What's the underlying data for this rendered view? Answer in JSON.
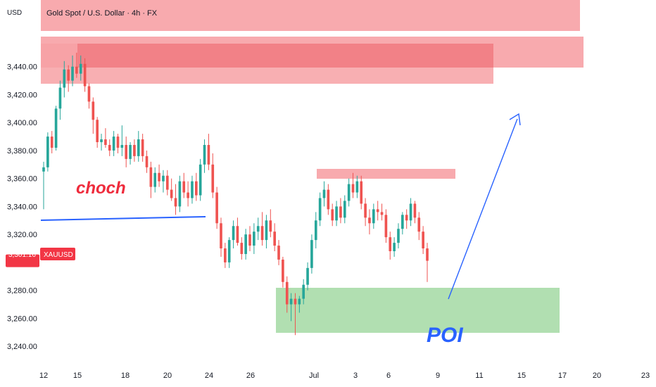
{
  "header": {
    "currency": "USD",
    "title": "Gold Spot / U.S. Dollar · 4h · FX"
  },
  "price_tag": {
    "value": "3,301.16",
    "symbol": "XAUUSD"
  },
  "annotations": {
    "choch": "choch",
    "poi": "POI"
  },
  "colors": {
    "bull": "#26a69a",
    "bear": "#ef5350",
    "supply_zone": "#f7a1a5",
    "supply_zone_dark": "#f0737a",
    "demand_zone": "#a9dba8",
    "line": "#2962ff",
    "price_tag": "#f23645"
  },
  "chart_data": {
    "type": "candlestick",
    "title": "Gold Spot / U.S. Dollar · 4h · FX",
    "ylim": [
      3230,
      3460
    ],
    "y_ticks": [
      {
        "value": 3440,
        "label": "3,440.00"
      },
      {
        "value": 3420,
        "label": "3,420.00"
      },
      {
        "value": 3400,
        "label": "3,400.00"
      },
      {
        "value": 3380,
        "label": "3,380.00"
      },
      {
        "value": 3360,
        "label": "3,360.00"
      },
      {
        "value": 3340,
        "label": "3,340.00"
      },
      {
        "value": 3320,
        "label": "3,320.00"
      },
      {
        "value": 3280,
        "label": "3,280.00"
      },
      {
        "value": 3260,
        "label": "3,260.00"
      },
      {
        "value": 3240,
        "label": "3,240.00"
      }
    ],
    "x_ticks": [
      "12",
      "15",
      "18",
      "20",
      "24",
      "26",
      "Jul",
      "3",
      "6",
      "9",
      "11",
      "15",
      "17",
      "20",
      "23"
    ],
    "last_price": 3301.16,
    "candles": [
      [
        3365,
        3372,
        3338,
        3368
      ],
      [
        3368,
        3393,
        3365,
        3390
      ],
      [
        3390,
        3394,
        3378,
        3382
      ],
      [
        3382,
        3412,
        3380,
        3410
      ],
      [
        3410,
        3430,
        3402,
        3425
      ],
      [
        3425,
        3444,
        3418,
        3438
      ],
      [
        3438,
        3441,
        3422,
        3430
      ],
      [
        3430,
        3448,
        3426,
        3440
      ],
      [
        3440,
        3450,
        3432,
        3435
      ],
      [
        3435,
        3448,
        3430,
        3442
      ],
      [
        3442,
        3446,
        3422,
        3426
      ],
      [
        3426,
        3428,
        3410,
        3415
      ],
      [
        3415,
        3418,
        3392,
        3402
      ],
      [
        3402,
        3404,
        3382,
        3386
      ],
      [
        3386,
        3392,
        3380,
        3388
      ],
      [
        3388,
        3396,
        3382,
        3384
      ],
      [
        3384,
        3388,
        3376,
        3380
      ],
      [
        3380,
        3394,
        3376,
        3390
      ],
      [
        3390,
        3392,
        3378,
        3382
      ],
      [
        3382,
        3398,
        3376,
        3384
      ],
      [
        3384,
        3390,
        3368,
        3374
      ],
      [
        3374,
        3386,
        3370,
        3384
      ],
      [
        3384,
        3388,
        3372,
        3376
      ],
      [
        3376,
        3394,
        3372,
        3388
      ],
      [
        3388,
        3392,
        3372,
        3376
      ],
      [
        3376,
        3380,
        3364,
        3368
      ],
      [
        3368,
        3372,
        3346,
        3354
      ],
      [
        3354,
        3368,
        3350,
        3364
      ],
      [
        3364,
        3370,
        3354,
        3358
      ],
      [
        3358,
        3366,
        3350,
        3362
      ],
      [
        3362,
        3366,
        3348,
        3352
      ],
      [
        3352,
        3360,
        3344,
        3346
      ],
      [
        3346,
        3356,
        3334,
        3340
      ],
      [
        3340,
        3362,
        3336,
        3358
      ],
      [
        3358,
        3364,
        3346,
        3350
      ],
      [
        3350,
        3358,
        3340,
        3346
      ],
      [
        3346,
        3362,
        3342,
        3358
      ],
      [
        3358,
        3364,
        3344,
        3348
      ],
      [
        3348,
        3374,
        3344,
        3370
      ],
      [
        3370,
        3388,
        3364,
        3384
      ],
      [
        3384,
        3392,
        3366,
        3370
      ],
      [
        3370,
        3378,
        3346,
        3350
      ],
      [
        3350,
        3354,
        3324,
        3328
      ],
      [
        3328,
        3332,
        3304,
        3310
      ],
      [
        3310,
        3314,
        3296,
        3300
      ],
      [
        3300,
        3318,
        3296,
        3316
      ],
      [
        3316,
        3330,
        3310,
        3326
      ],
      [
        3326,
        3332,
        3312,
        3314
      ],
      [
        3314,
        3318,
        3302,
        3306
      ],
      [
        3306,
        3324,
        3302,
        3320
      ],
      [
        3320,
        3326,
        3308,
        3312
      ],
      [
        3312,
        3328,
        3306,
        3322
      ],
      [
        3322,
        3332,
        3316,
        3326
      ],
      [
        3326,
        3336,
        3312,
        3316
      ],
      [
        3316,
        3334,
        3310,
        3330
      ],
      [
        3330,
        3338,
        3318,
        3322
      ],
      [
        3322,
        3328,
        3308,
        3312
      ],
      [
        3312,
        3316,
        3298,
        3302
      ],
      [
        3302,
        3304,
        3282,
        3286
      ],
      [
        3286,
        3290,
        3264,
        3270
      ],
      [
        3270,
        3278,
        3258,
        3274
      ],
      [
        3274,
        3278,
        3248,
        3270
      ],
      [
        3270,
        3276,
        3264,
        3274
      ],
      [
        3274,
        3288,
        3270,
        3284
      ],
      [
        3284,
        3300,
        3280,
        3296
      ],
      [
        3296,
        3320,
        3292,
        3316
      ],
      [
        3316,
        3336,
        3310,
        3330
      ],
      [
        3330,
        3350,
        3326,
        3346
      ],
      [
        3346,
        3358,
        3340,
        3352
      ],
      [
        3352,
        3356,
        3334,
        3338
      ],
      [
        3338,
        3342,
        3326,
        3330
      ],
      [
        3330,
        3344,
        3326,
        3340
      ],
      [
        3340,
        3346,
        3328,
        3332
      ],
      [
        3332,
        3348,
        3328,
        3344
      ],
      [
        3344,
        3360,
        3340,
        3356
      ],
      [
        3356,
        3364,
        3346,
        3350
      ],
      [
        3350,
        3362,
        3346,
        3358
      ],
      [
        3358,
        3362,
        3338,
        3342
      ],
      [
        3342,
        3346,
        3326,
        3332
      ],
      [
        3332,
        3338,
        3320,
        3328
      ],
      [
        3328,
        3342,
        3324,
        3338
      ],
      [
        3338,
        3344,
        3330,
        3336
      ],
      [
        3336,
        3342,
        3330,
        3334
      ],
      [
        3334,
        3338,
        3314,
        3318
      ],
      [
        3318,
        3322,
        3302,
        3308
      ],
      [
        3308,
        3318,
        3304,
        3314
      ],
      [
        3314,
        3328,
        3310,
        3324
      ],
      [
        3324,
        3336,
        3320,
        3334
      ],
      [
        3334,
        3338,
        3324,
        3330
      ],
      [
        3330,
        3346,
        3326,
        3342
      ],
      [
        3342,
        3344,
        3328,
        3332
      ],
      [
        3332,
        3336,
        3316,
        3322
      ],
      [
        3322,
        3326,
        3306,
        3310
      ],
      [
        3310,
        3314,
        3286,
        3301.16
      ]
    ]
  }
}
